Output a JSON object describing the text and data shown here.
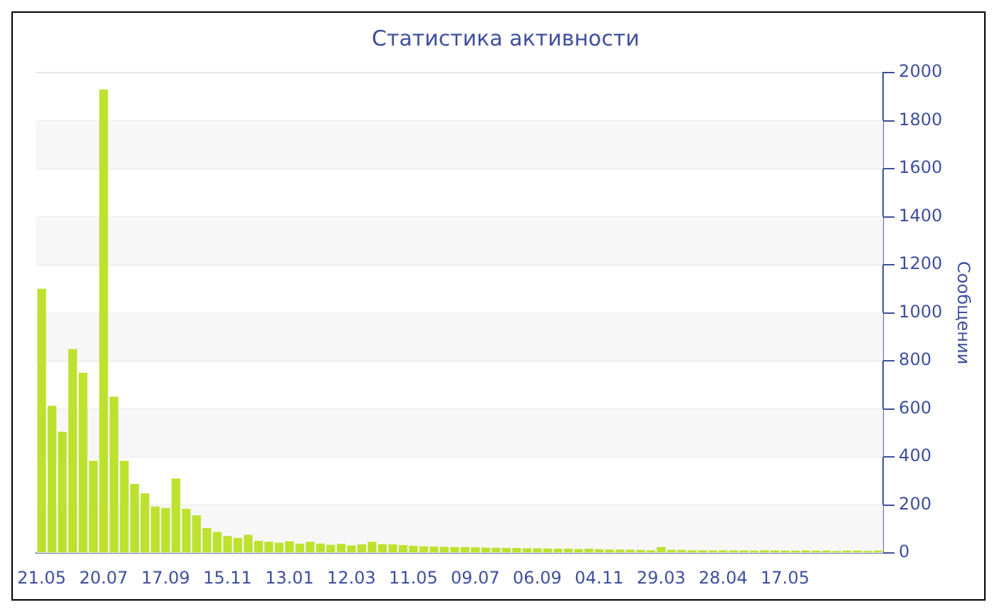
{
  "chart_data": {
    "type": "bar",
    "title": "Статистика активности",
    "ylabel": "Сообщении",
    "categories": [
      "21.05",
      null,
      null,
      null,
      null,
      null,
      "20.07",
      null,
      null,
      null,
      null,
      null,
      "17.09",
      null,
      null,
      null,
      null,
      null,
      "15.11",
      null,
      null,
      null,
      null,
      null,
      "13.01",
      null,
      null,
      null,
      null,
      null,
      "12.03",
      null,
      null,
      null,
      null,
      null,
      "11.05",
      null,
      null,
      null,
      null,
      null,
      "09.07",
      null,
      null,
      null,
      null,
      null,
      "06.09",
      null,
      null,
      null,
      null,
      null,
      "04.11",
      null,
      null,
      null,
      null,
      null,
      "29.03",
      null,
      null,
      null,
      null,
      null,
      "28.04",
      null,
      null,
      null,
      null,
      null,
      "17.05",
      null,
      null,
      null,
      null,
      null,
      null,
      null,
      null,
      null
    ],
    "values": [
      1100,
      613,
      505,
      849,
      751,
      384,
      1930,
      651,
      384,
      288,
      249,
      194,
      188,
      310,
      184,
      157,
      104,
      88,
      71,
      63,
      76,
      51,
      47,
      43,
      49,
      39,
      47,
      40,
      35,
      38,
      32,
      36,
      47,
      37,
      36,
      33,
      30,
      28,
      27,
      26,
      25,
      25,
      24,
      23,
      22,
      21,
      21,
      20,
      20,
      19,
      18,
      18,
      17,
      18,
      16,
      15,
      15,
      14,
      13,
      12,
      25,
      14,
      13,
      12,
      12,
      11,
      12,
      11,
      11,
      10,
      12,
      11,
      10,
      10,
      11,
      10,
      10,
      9,
      10,
      10,
      9,
      10
    ],
    "color": "#bde12f",
    "ylim": [
      0,
      2000
    ],
    "yticks": [
      0,
      200,
      400,
      600,
      800,
      1000,
      1200,
      1400,
      1600,
      1800,
      2000
    ],
    "grid": true
  }
}
